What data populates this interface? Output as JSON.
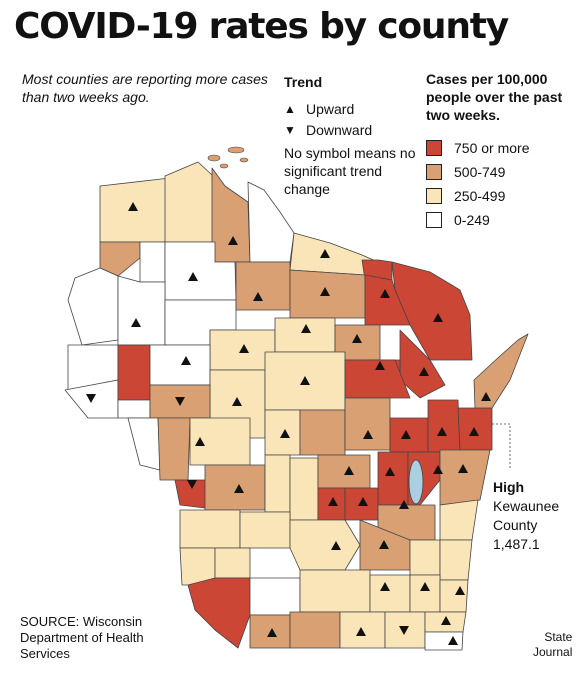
{
  "title": "COVID-19 rates by county",
  "subtitle": "Most counties are reporting more cases than two weeks ago.",
  "trend_legend": {
    "title": "Trend",
    "upward_label": "Upward",
    "downward_label": "Downward",
    "no_symbol_note": "No symbol means no significant trend change"
  },
  "rate_legend": {
    "title": "Cases per 100,000 people over the past two weeks.",
    "bins": [
      {
        "label": "750 or more",
        "color": "#cc4636"
      },
      {
        "label": "500-749",
        "color": "#d9a074"
      },
      {
        "label": "250-499",
        "color": "#fae5b8"
      },
      {
        "label": "0-249",
        "color": "#ffffff"
      }
    ]
  },
  "highlight": {
    "heading": "High",
    "county_line1": "Kewaunee",
    "county_line2": "County",
    "value": "1,487.1"
  },
  "source": "SOURCE: Wisconsin Department of Health Services",
  "credit_line1": "State",
  "credit_line2": "Journal",
  "colors": {
    "lake": "#a9cfe0",
    "border": "#444444"
  }
}
